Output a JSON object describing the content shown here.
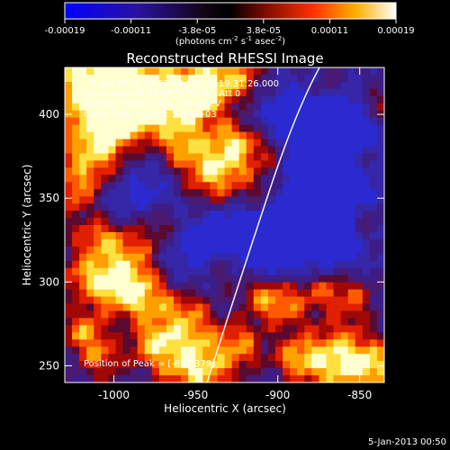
{
  "colorbar": {
    "tick_labels": [
      "-0.00019",
      "-0.00011",
      "-3.8e-05",
      "3.8e-05",
      "0.00011",
      "0.00019"
    ],
    "units": {
      "base": "(photons cm",
      "exp1": "-2",
      "mid": " s",
      "exp2": "-1",
      "end": " asec",
      "exp3": "-2",
      "close": ")"
    }
  },
  "plot": {
    "title": "Reconstructed RHESSI Image",
    "info_lines": [
      "4-Jan-2013 19:27:48.000 to 19:31:26.000",
      "Detectors: 3F 5F 6F 7F 8F 9F, Att 0",
      "Energy Range: 25.0 - 50.0 keV",
      "Clean    Total counts: 5.96E+03"
    ],
    "peak_label": "Position of Peak = [-897,379]",
    "xlabel": "Heliocentric X (arcsec)",
    "ylabel": "Heliocentric Y (arcsec)",
    "x_ticks": [
      "-1000",
      "-950",
      "-900",
      "-850"
    ],
    "y_ticks": [
      "250",
      "300",
      "350",
      "400"
    ],
    "x_range": [
      -1030,
      -835
    ],
    "y_range": [
      240,
      428
    ],
    "peak_position": [
      -897,
      379
    ]
  },
  "footer": {
    "date": "5-Jan-2013 00:50"
  }
}
